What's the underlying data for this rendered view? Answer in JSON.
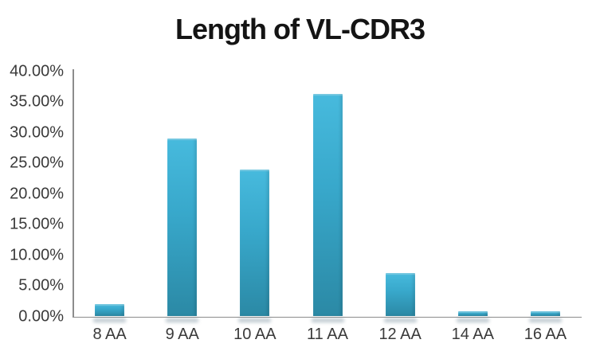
{
  "chart_data": {
    "type": "bar",
    "title": "Length of VL-CDR3",
    "categories": [
      "8 AA",
      "9 AA",
      "10 AA",
      "11 AA",
      "12 AA",
      "14 AA",
      "16 AA"
    ],
    "values": [
      2.0,
      29.0,
      24.0,
      36.3,
      7.1,
      0.8,
      0.8
    ],
    "xlabel": "",
    "ylabel": "",
    "ylim": [
      0,
      40
    ],
    "ytick_step": 5,
    "ytick_labels": [
      "0.00%",
      "5.00%",
      "10.00%",
      "15.00%",
      "20.00%",
      "25.00%",
      "30.00%",
      "35.00%",
      "40.00%"
    ],
    "grid": false,
    "legend": false,
    "colors": {
      "bar_top": "#47badd",
      "bar_mid": "#38a8cb",
      "bar_bottom": "#2b89a5",
      "axis": "#8c8c8c",
      "tick_text": "#3a3a3a",
      "title_text": "#141414",
      "background": "#ffffff"
    }
  }
}
